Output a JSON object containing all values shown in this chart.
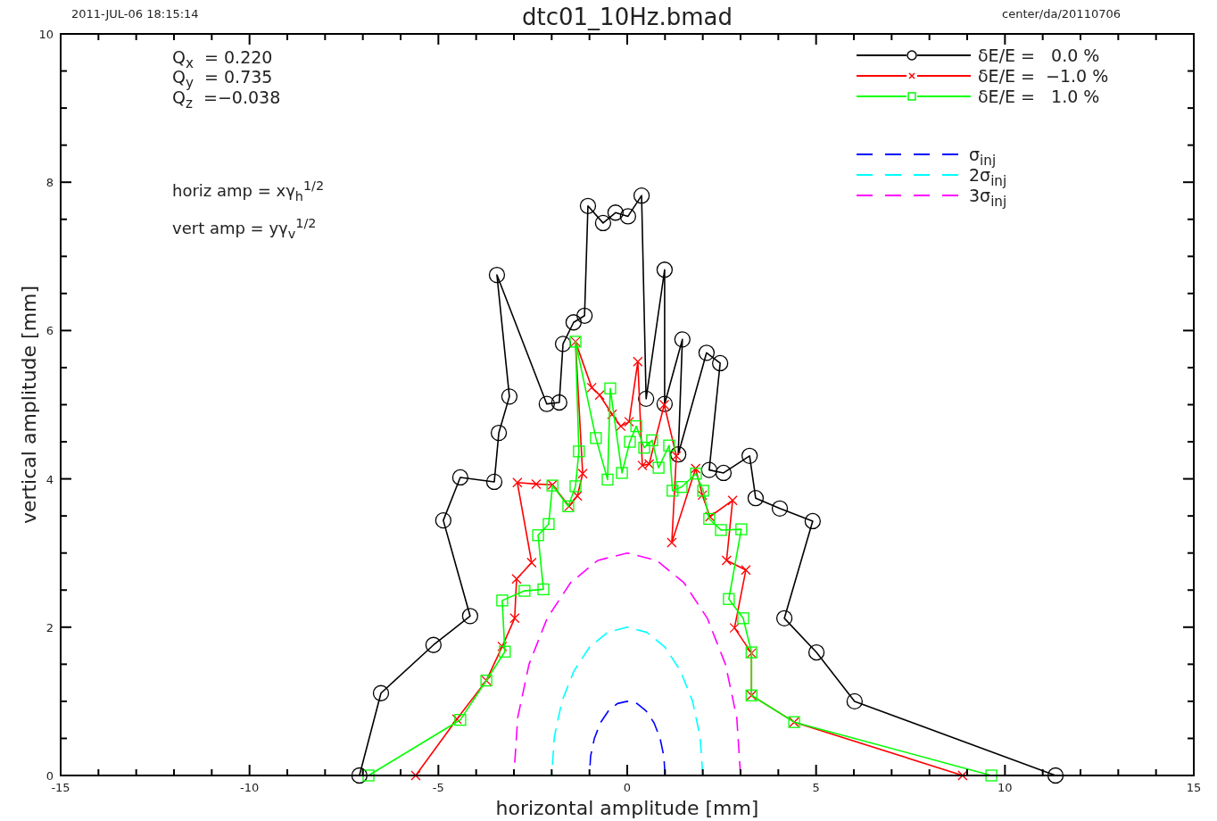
{
  "chart_data": {
    "type": "line",
    "title": "dtc01_10Hz.bmad",
    "xlabel": "horizontal amplitude [mm]",
    "ylabel": "vertical amplitude [mm]",
    "xlim": [
      -15,
      15
    ],
    "ylim": [
      0,
      10
    ],
    "xticks": [
      -15,
      {
        "value": -14,
        "label": null
      },
      {
        "value": -13,
        "label": null
      },
      {
        "value": -12,
        "label": null
      },
      {
        "value": -11,
        "label": null
      },
      -10,
      {
        "value": -9,
        "label": null
      },
      {
        "value": -8,
        "label": null
      },
      {
        "value": -7,
        "label": null
      },
      {
        "value": -6,
        "label": null
      },
      -5,
      {
        "value": -4,
        "label": null
      },
      {
        "value": -3,
        "label": null
      },
      {
        "value": -2,
        "label": null
      },
      {
        "value": -1,
        "label": null
      },
      0,
      {
        "value": 1,
        "label": null
      },
      {
        "value": 2,
        "label": null
      },
      {
        "value": 3,
        "label": null
      },
      {
        "value": 4,
        "label": null
      },
      5,
      {
        "value": 6,
        "label": null
      },
      {
        "value": 7,
        "label": null
      },
      {
        "value": 8,
        "label": null
      },
      {
        "value": 9,
        "label": null
      },
      10,
      {
        "value": 11,
        "label": null
      },
      {
        "value": 12,
        "label": null
      },
      {
        "value": 13,
        "label": null
      },
      {
        "value": 14,
        "label": null
      },
      15
    ],
    "yticks": [
      0,
      {
        "value": 0.5,
        "label": null
      },
      {
        "value": 1,
        "label": null
      },
      {
        "value": 1.5,
        "label": null
      },
      2,
      {
        "value": 2.5,
        "label": null
      },
      {
        "value": 3,
        "label": null
      },
      {
        "value": 3.5,
        "label": null
      },
      4,
      {
        "value": 4.5,
        "label": null
      },
      {
        "value": 5,
        "label": null
      },
      {
        "value": 5.5,
        "label": null
      },
      6,
      {
        "value": 6.5,
        "label": null
      },
      {
        "value": 7,
        "label": null
      },
      {
        "value": 7.5,
        "label": null
      },
      8,
      {
        "value": 8.5,
        "label": null
      },
      {
        "value": 9,
        "label": null
      },
      {
        "value": 9.5,
        "label": null
      },
      10
    ],
    "legend": "top right",
    "annotations": [
      "2011-JUL-06 18:15:14",
      "center/da/20110706",
      "Q$_{x}$  = 0.220",
      "Q$_{y}$  = 0.735",
      "Q$_{z}$  =−0.038",
      "horiz amp = xγ$_{h}$$^{1/2}$",
      "vert amp = yγ$_{v}$$^{1/2}$"
    ],
    "series": [
      {
        "name": "δE/E =   0.0 %",
        "color": "#000000",
        "marker": "circle",
        "line_style": "solid",
        "x": [
          -7.09,
          -6.52,
          -5.13,
          -4.16,
          -4.87,
          -4.42,
          -3.52,
          -3.4,
          -3.12,
          -3.45,
          -2.13,
          -1.8,
          -1.7,
          -1.42,
          -1.13,
          -1.04,
          -0.64,
          -0.31,
          0.02,
          0.38,
          0.5,
          0.99,
          0.99,
          1.46,
          1.35,
          2.1,
          2.46,
          2.17,
          2.55,
          3.24,
          3.4,
          4.04,
          4.91,
          4.16,
          5.01,
          6.02,
          11.34
        ],
        "values": [
          0,
          1.11,
          1.76,
          2.15,
          3.44,
          4.02,
          3.96,
          4.62,
          5.11,
          6.75,
          5.01,
          5.03,
          5.82,
          6.11,
          6.2,
          7.68,
          7.45,
          7.59,
          7.54,
          7.82,
          5.08,
          6.82,
          5.01,
          5.88,
          4.33,
          5.7,
          5.56,
          4.12,
          4.08,
          4.31,
          3.74,
          3.6,
          3.43,
          2.12,
          1.66,
          1.0,
          0
        ]
      },
      {
        "name": "δE/E =  −1.0 %",
        "color": "#ff0000",
        "marker": "cross",
        "line_style": "solid",
        "x": [
          -5.6,
          -4.51,
          -3.73,
          -3.31,
          -2.98,
          -2.93,
          -2.53,
          -2.91,
          -2.41,
          -1.98,
          -1.54,
          -1.32,
          -1.18,
          -1.37,
          -0.94,
          -0.73,
          -0.4,
          -0.17,
          0.05,
          0.28,
          0.4,
          0.58,
          0.98,
          1.3,
          1.18,
          1.81,
          1.99,
          2.19,
          2.79,
          2.63,
          3.14,
          2.84,
          3.29,
          3.29,
          4.42,
          8.88
        ],
        "values": [
          0,
          0.76,
          1.28,
          1.74,
          2.12,
          2.65,
          2.87,
          3.95,
          3.93,
          3.92,
          3.63,
          3.77,
          4.07,
          5.85,
          5.23,
          5.13,
          4.87,
          4.71,
          4.77,
          5.58,
          4.18,
          4.2,
          5.0,
          4.31,
          3.14,
          4.14,
          3.78,
          3.49,
          3.71,
          2.9,
          2.77,
          1.99,
          1.65,
          1.08,
          0.72,
          0
        ]
      },
      {
        "name": "δE/E =   1.0 %",
        "color": "#00ff00",
        "marker": "square",
        "line_style": "solid",
        "x": [
          -6.85,
          -4.42,
          -3.73,
          -3.24,
          -3.31,
          -2.72,
          -2.22,
          -2.36,
          -2.08,
          -1.98,
          -1.56,
          -1.37,
          -1.28,
          -1.37,
          -0.83,
          -0.52,
          -0.45,
          -0.14,
          0.07,
          0.24,
          0.45,
          0.66,
          0.83,
          1.11,
          1.2,
          1.44,
          1.82,
          2.01,
          2.17,
          2.48,
          3.02,
          2.69,
          3.07,
          3.29,
          3.29,
          4.42,
          9.64
        ],
        "values": [
          0,
          0.75,
          1.28,
          1.67,
          2.36,
          2.49,
          2.51,
          3.24,
          3.39,
          3.91,
          3.63,
          3.9,
          4.37,
          5.85,
          4.55,
          3.99,
          5.22,
          4.08,
          4.5,
          4.71,
          4.42,
          4.52,
          4.15,
          4.45,
          3.84,
          3.89,
          4.07,
          3.84,
          3.46,
          3.31,
          3.32,
          2.38,
          2.12,
          1.66,
          1.08,
          0.72,
          0
        ]
      },
      {
        "name": "σ$_{inj}$",
        "color": "#0000ff",
        "marker": "none",
        "line_style": "dashed",
        "x": [
          1,
          0.97,
          0.87,
          0.71,
          0.5,
          0.26,
          0,
          -0.26,
          -0.5,
          -0.71,
          -0.87,
          -0.97,
          -1
        ],
        "values": [
          0,
          0.26,
          0.5,
          0.71,
          0.87,
          0.97,
          1,
          0.97,
          0.87,
          0.71,
          0.5,
          0.26,
          0
        ]
      },
      {
        "name": "2σ$_{inj}$",
        "color": "#00ffff",
        "marker": "none",
        "line_style": "dashed",
        "x": [
          2,
          1.93,
          1.73,
          1.41,
          1,
          0.52,
          0,
          -0.52,
          -1,
          -1.41,
          -1.73,
          -1.93,
          -2
        ],
        "values": [
          0,
          0.52,
          1,
          1.41,
          1.73,
          1.93,
          2,
          1.93,
          1.73,
          1.41,
          1,
          0.52,
          0
        ]
      },
      {
        "name": "3σ$_{inj}$",
        "color": "#ff00ff",
        "marker": "none",
        "line_style": "dashed",
        "x": [
          3,
          2.9,
          2.6,
          2.12,
          1.5,
          0.78,
          0,
          -0.78,
          -1.5,
          -2.12,
          -2.6,
          -2.9,
          -3
        ],
        "values": [
          0,
          0.78,
          1.5,
          2.12,
          2.6,
          2.9,
          3,
          2.9,
          2.6,
          2.12,
          1.5,
          0.78,
          0
        ]
      }
    ]
  }
}
